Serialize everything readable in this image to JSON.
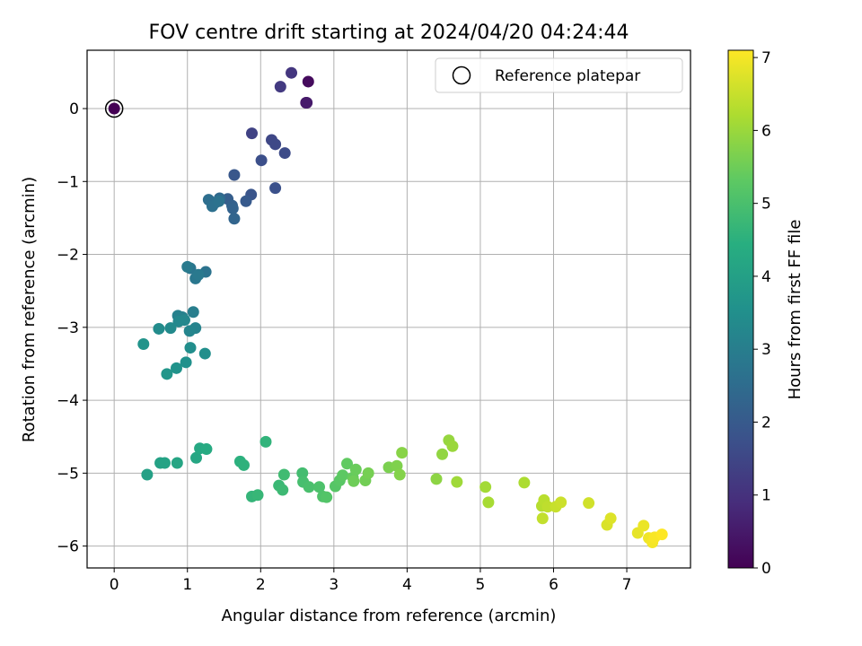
{
  "chart_data": {
    "type": "scatter",
    "title": "FOV centre drift starting at 2024/04/20 04:24:44",
    "xlabel": "Angular distance from reference (arcmin)",
    "ylabel": "Rotation from reference (arcmin)",
    "xlim": [
      -0.37,
      7.87
    ],
    "ylim": [
      -6.3,
      0.8
    ],
    "xticks": [
      0,
      1,
      2,
      3,
      4,
      5,
      6,
      7
    ],
    "yticks": [
      0,
      -1,
      -2,
      -3,
      -4,
      -5,
      -6
    ],
    "grid": true,
    "legend": {
      "placement": "top-right",
      "entries": [
        "Reference platepar"
      ]
    },
    "colorbar": {
      "label": "Hours from first FF file",
      "min": 0,
      "max": 7.1,
      "ticks": [
        0,
        1,
        2,
        3,
        4,
        5,
        6,
        7
      ],
      "colormap": "viridis"
    },
    "reference_point": {
      "x": 0,
      "y": 0
    },
    "points": [
      [
        0.0,
        0.0,
        0.0
      ],
      [
        2.65,
        0.37,
        0.2
      ],
      [
        2.62,
        0.08,
        0.4
      ],
      [
        2.63,
        0.08,
        0.5
      ],
      [
        2.42,
        0.49,
        1.1
      ],
      [
        2.27,
        0.3,
        1.2
      ],
      [
        1.88,
        -0.34,
        1.4
      ],
      [
        2.15,
        -0.43,
        1.5
      ],
      [
        2.2,
        -0.49,
        1.55
      ],
      [
        2.33,
        -0.61,
        1.6
      ],
      [
        2.01,
        -0.71,
        1.7
      ],
      [
        2.2,
        -1.09,
        1.75
      ],
      [
        1.87,
        -1.18,
        1.85
      ],
      [
        1.64,
        -0.91,
        1.9
      ],
      [
        1.8,
        -1.27,
        2.0
      ],
      [
        1.55,
        -1.24,
        2.1
      ],
      [
        1.61,
        -1.33,
        2.2
      ],
      [
        1.62,
        -1.37,
        2.25
      ],
      [
        1.64,
        -1.51,
        2.3
      ],
      [
        1.44,
        -1.23,
        2.4
      ],
      [
        1.38,
        -1.29,
        2.5
      ],
      [
        1.29,
        -1.25,
        2.55
      ],
      [
        1.34,
        -1.34,
        2.6
      ],
      [
        1.43,
        -1.27,
        2.65
      ],
      [
        1.25,
        -2.24,
        2.7
      ],
      [
        1.04,
        -2.19,
        2.75
      ],
      [
        1.11,
        -2.33,
        2.8
      ],
      [
        1.15,
        -2.28,
        2.85
      ],
      [
        1.0,
        -2.17,
        2.9
      ],
      [
        1.08,
        -2.79,
        3.0
      ],
      [
        0.93,
        -2.86,
        3.05
      ],
      [
        0.87,
        -2.84,
        3.1
      ],
      [
        1.11,
        -3.01,
        3.15
      ],
      [
        1.03,
        -3.05,
        3.2
      ],
      [
        0.96,
        -2.9,
        3.25
      ],
      [
        0.88,
        -2.92,
        3.3
      ],
      [
        0.77,
        -3.01,
        3.35
      ],
      [
        0.61,
        -3.02,
        3.4
      ],
      [
        1.04,
        -3.28,
        3.45
      ],
      [
        1.24,
        -3.36,
        3.5
      ],
      [
        0.98,
        -3.48,
        3.55
      ],
      [
        0.85,
        -3.56,
        3.6
      ],
      [
        0.4,
        -3.23,
        3.65
      ],
      [
        0.72,
        -3.64,
        3.7
      ],
      [
        0.45,
        -5.02,
        4.0
      ],
      [
        0.63,
        -4.86,
        4.05
      ],
      [
        0.69,
        -4.86,
        4.1
      ],
      [
        0.86,
        -4.86,
        4.15
      ],
      [
        1.12,
        -4.79,
        4.2
      ],
      [
        1.17,
        -4.66,
        4.25
      ],
      [
        1.26,
        -4.67,
        4.3
      ],
      [
        1.72,
        -4.84,
        4.5
      ],
      [
        1.77,
        -4.89,
        4.55
      ],
      [
        2.07,
        -4.57,
        4.6
      ],
      [
        1.88,
        -5.32,
        4.65
      ],
      [
        1.96,
        -5.3,
        4.7
      ],
      [
        2.25,
        -5.17,
        4.75
      ],
      [
        2.3,
        -5.23,
        4.8
      ],
      [
        2.32,
        -5.02,
        4.85
      ],
      [
        2.57,
        -5.0,
        4.9
      ],
      [
        2.58,
        -5.12,
        4.95
      ],
      [
        2.66,
        -5.19,
        5.0
      ],
      [
        2.8,
        -5.19,
        5.05
      ],
      [
        2.85,
        -5.32,
        5.1
      ],
      [
        2.9,
        -5.33,
        5.15
      ],
      [
        3.02,
        -5.18,
        5.2
      ],
      [
        3.08,
        -5.1,
        5.25
      ],
      [
        3.12,
        -5.03,
        5.3
      ],
      [
        3.18,
        -4.87,
        5.35
      ],
      [
        3.26,
        -5.06,
        5.4
      ],
      [
        3.3,
        -4.95,
        5.45
      ],
      [
        3.27,
        -5.11,
        5.5
      ],
      [
        3.43,
        -5.1,
        5.55
      ],
      [
        3.47,
        -5.0,
        5.6
      ],
      [
        3.75,
        -4.92,
        5.65
      ],
      [
        3.86,
        -4.9,
        5.7
      ],
      [
        3.9,
        -5.02,
        5.75
      ],
      [
        3.93,
        -4.72,
        5.8
      ],
      [
        4.4,
        -5.08,
        5.85
      ],
      [
        4.48,
        -4.74,
        5.9
      ],
      [
        4.57,
        -4.55,
        5.95
      ],
      [
        4.62,
        -4.63,
        6.0
      ],
      [
        4.68,
        -5.12,
        6.05
      ],
      [
        5.07,
        -5.19,
        6.1
      ],
      [
        5.11,
        -5.4,
        6.15
      ],
      [
        5.6,
        -5.13,
        6.2
      ],
      [
        5.84,
        -5.45,
        6.3
      ],
      [
        5.87,
        -5.37,
        6.35
      ],
      [
        5.92,
        -5.46,
        6.4
      ],
      [
        5.85,
        -5.62,
        6.45
      ],
      [
        6.03,
        -5.46,
        6.5
      ],
      [
        6.1,
        -5.4,
        6.55
      ],
      [
        6.48,
        -5.41,
        6.6
      ],
      [
        6.73,
        -5.71,
        6.7
      ],
      [
        6.78,
        -5.62,
        6.75
      ],
      [
        7.15,
        -5.82,
        6.85
      ],
      [
        7.23,
        -5.72,
        6.9
      ],
      [
        7.3,
        -5.89,
        6.95
      ],
      [
        7.35,
        -5.95,
        7.0
      ],
      [
        7.38,
        -5.88,
        7.05
      ],
      [
        7.48,
        -5.84,
        7.1
      ]
    ]
  }
}
